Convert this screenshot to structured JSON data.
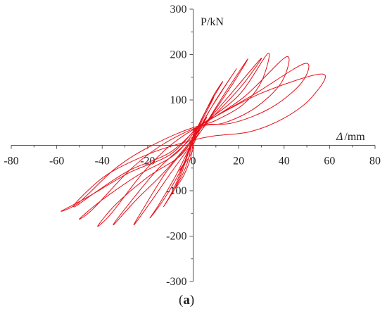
{
  "chart_data": {
    "type": "line",
    "xlabel_symbol": "Δ",
    "xlabel_unit": "/mm",
    "ylabel": "P/kN",
    "caption_open": "(",
    "caption_letter": "a",
    "caption_close": ")",
    "xlim": [
      -80,
      80
    ],
    "ylim": [
      -300,
      300
    ],
    "x_ticks": [
      -80,
      -60,
      -40,
      -20,
      0,
      20,
      40,
      60,
      80
    ],
    "y_ticks": [
      -300,
      -200,
      -100,
      100,
      200,
      300
    ],
    "x_tick_labels": [
      "-80",
      "-60",
      "-40",
      "-20",
      "0",
      "20",
      "40",
      "60",
      "80"
    ],
    "y_tick_labels": [
      "-300",
      "-200",
      "-100",
      "100",
      "200",
      "300"
    ],
    "grid": false,
    "line_color": "#e8101a",
    "series": [
      {
        "points": [
          [
            0,
            0
          ],
          [
            3,
            35
          ],
          [
            6,
            62
          ],
          [
            3,
            40
          ],
          [
            0,
            15
          ],
          [
            -3,
            -30
          ],
          [
            -6,
            -55
          ],
          [
            -3,
            -35
          ],
          [
            0,
            -10
          ],
          [
            0,
            0
          ]
        ]
      },
      {
        "points": [
          [
            0,
            10
          ],
          [
            4,
            55
          ],
          [
            9,
            105
          ],
          [
            6,
            80
          ],
          [
            2,
            40
          ],
          [
            -2,
            -15
          ],
          [
            -5,
            -60
          ],
          [
            -8,
            -95
          ],
          [
            -4,
            -65
          ],
          [
            -1,
            -25
          ],
          [
            0,
            10
          ]
        ]
      },
      {
        "points": [
          [
            0,
            15
          ],
          [
            6,
            80
          ],
          [
            13,
            140
          ],
          [
            9,
            110
          ],
          [
            4,
            60
          ],
          [
            0,
            20
          ],
          [
            -4,
            -40
          ],
          [
            -9,
            -100
          ],
          [
            -13,
            -135
          ],
          [
            -8,
            -95
          ],
          [
            -3,
            -45
          ],
          [
            0,
            15
          ]
        ]
      },
      {
        "points": [
          [
            2,
            30
          ],
          [
            10,
            100
          ],
          [
            19,
            168
          ],
          [
            14,
            130
          ],
          [
            7,
            75
          ],
          [
            2,
            30
          ],
          [
            -2,
            -10
          ],
          [
            -8,
            -70
          ],
          [
            -15,
            -130
          ],
          [
            -19,
            -160
          ],
          [
            -13,
            -120
          ],
          [
            -6,
            -60
          ],
          [
            2,
            30
          ]
        ]
      },
      {
        "points": [
          [
            4,
            35
          ],
          [
            14,
            115
          ],
          [
            24,
            190
          ],
          [
            18,
            140
          ],
          [
            10,
            80
          ],
          [
            4,
            35
          ],
          [
            -2,
            0
          ],
          [
            -12,
            -60
          ],
          [
            -22,
            -140
          ],
          [
            -26,
            -175
          ],
          [
            -18,
            -120
          ],
          [
            -9,
            -55
          ],
          [
            4,
            35
          ]
        ]
      },
      {
        "points": [
          [
            4,
            40
          ],
          [
            16,
            110
          ],
          [
            30,
            192
          ],
          [
            22,
            135
          ],
          [
            12,
            80
          ],
          [
            4,
            40
          ],
          [
            -4,
            0
          ],
          [
            -16,
            -55
          ],
          [
            -30,
            -140
          ],
          [
            -35,
            -175
          ],
          [
            -25,
            -120
          ],
          [
            -12,
            -55
          ],
          [
            4,
            40
          ]
        ]
      },
      {
        "points": [
          [
            2,
            40
          ],
          [
            20,
            110
          ],
          [
            33,
            203
          ],
          [
            30,
            140
          ],
          [
            22,
            90
          ],
          [
            10,
            55
          ],
          [
            2,
            40
          ],
          [
            -10,
            0
          ],
          [
            -22,
            -60
          ],
          [
            -36,
            -150
          ],
          [
            -42,
            -178
          ],
          [
            -34,
            -130
          ],
          [
            -20,
            -70
          ],
          [
            -5,
            -20
          ],
          [
            2,
            40
          ]
        ]
      },
      {
        "points": [
          [
            2,
            40
          ],
          [
            22,
            105
          ],
          [
            41,
            195
          ],
          [
            39,
            140
          ],
          [
            28,
            85
          ],
          [
            14,
            50
          ],
          [
            2,
            40
          ],
          [
            -14,
            0
          ],
          [
            -28,
            -55
          ],
          [
            -44,
            -140
          ],
          [
            -50,
            -162
          ],
          [
            -40,
            -120
          ],
          [
            -24,
            -65
          ],
          [
            -8,
            -20
          ],
          [
            2,
            40
          ]
        ]
      },
      {
        "points": [
          [
            2,
            42
          ],
          [
            26,
            110
          ],
          [
            49,
            180
          ],
          [
            48,
            140
          ],
          [
            35,
            85
          ],
          [
            18,
            50
          ],
          [
            2,
            42
          ],
          [
            -18,
            0
          ],
          [
            -34,
            -50
          ],
          [
            -50,
            -125
          ],
          [
            -58,
            -145
          ],
          [
            -45,
            -110
          ],
          [
            -28,
            -60
          ],
          [
            -10,
            -20
          ],
          [
            2,
            42
          ]
        ]
      },
      {
        "points": [
          [
            3,
            45
          ],
          [
            30,
            115
          ],
          [
            57,
            157
          ],
          [
            52,
            105
          ],
          [
            40,
            60
          ],
          [
            25,
            30
          ],
          [
            8,
            20
          ],
          [
            -5,
            5
          ],
          [
            -20,
            -20
          ],
          [
            -38,
            -65
          ],
          [
            -50,
            -118
          ],
          [
            -52,
            -135
          ],
          [
            -42,
            -100
          ],
          [
            -28,
            -55
          ],
          [
            -10,
            -15
          ],
          [
            3,
            45
          ]
        ]
      }
    ]
  }
}
